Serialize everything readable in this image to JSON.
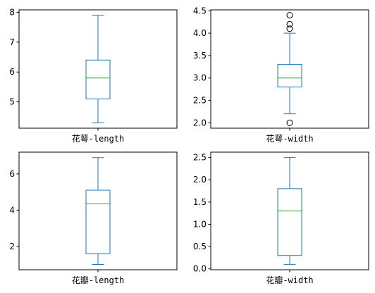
{
  "chart_data": [
    {
      "type": "boxplot",
      "category": "花萼-length",
      "ylim": [
        4.12,
        8.08
      ],
      "yticks": [
        5,
        6,
        7,
        8
      ],
      "ytick_labels": [
        "5",
        "6",
        "7",
        "8"
      ],
      "box": {
        "whisker_low": 4.3,
        "q1": 5.1,
        "median": 5.8,
        "q3": 6.4,
        "whisker_high": 7.9
      },
      "outliers": []
    },
    {
      "type": "boxplot",
      "category": "花萼-width",
      "ylim": [
        1.88,
        4.52
      ],
      "yticks": [
        2.0,
        2.5,
        3.0,
        3.5,
        4.0,
        4.5
      ],
      "ytick_labels": [
        "2.0",
        "2.5",
        "3.0",
        "3.5",
        "4.0",
        "4.5"
      ],
      "box": {
        "whisker_low": 2.2,
        "q1": 2.8,
        "median": 3.0,
        "q3": 3.3,
        "whisker_high": 4.0
      },
      "outliers": [
        2.0,
        4.1,
        4.2,
        4.4
      ]
    },
    {
      "type": "boxplot",
      "category": "花瓣-length",
      "ylim": [
        0.71,
        7.2
      ],
      "yticks": [
        2,
        4,
        6
      ],
      "ytick_labels": [
        "2",
        "4",
        "6"
      ],
      "box": {
        "whisker_low": 1.0,
        "q1": 1.6,
        "median": 4.35,
        "q3": 5.1,
        "whisker_high": 6.9
      },
      "outliers": []
    },
    {
      "type": "boxplot",
      "category": "花瓣-width",
      "ylim": [
        -0.02,
        2.62
      ],
      "yticks": [
        0.0,
        0.5,
        1.0,
        1.5,
        2.0,
        2.5
      ],
      "ytick_labels": [
        "0.0",
        "0.5",
        "1.0",
        "1.5",
        "2.0",
        "2.5"
      ],
      "box": {
        "whisker_low": 0.1,
        "q1": 0.3,
        "median": 1.3,
        "q3": 1.8,
        "whisker_high": 2.5
      },
      "outliers": []
    }
  ],
  "colors": {
    "box": "#1f77b4",
    "median": "#2ca02c",
    "axis": "#000000",
    "outlier_edge": "#000000"
  }
}
